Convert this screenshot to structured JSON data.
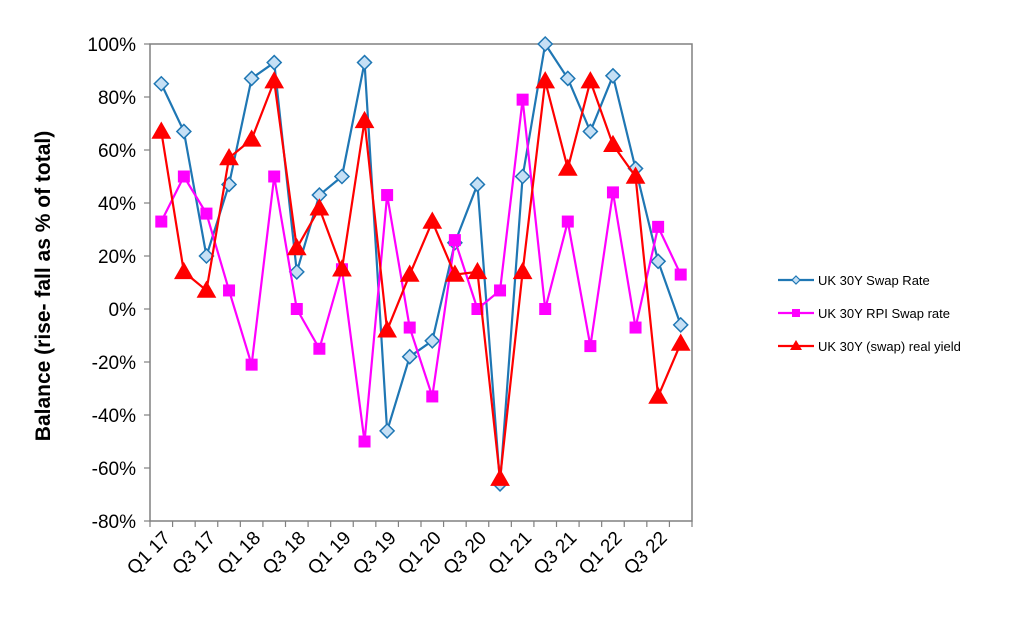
{
  "chart_data": {
    "type": "line",
    "title": "",
    "xlabel": "",
    "ylabel": "Balance (rise- fall as % of total)",
    "ylim": [
      -80,
      100
    ],
    "ytick_step": 20,
    "ytick_suffix": "%",
    "grid": false,
    "legend_position": "right",
    "categories": [
      "Q1 17",
      "Q2 17",
      "Q3 17",
      "Q4 17",
      "Q1 18",
      "Q2 18",
      "Q3 18",
      "Q4 18",
      "Q1 19",
      "Q2 19",
      "Q3 19",
      "Q4 19",
      "Q1 20",
      "Q2 20",
      "Q3 20",
      "Q4 20",
      "Q1 21",
      "Q2 21",
      "Q3 21",
      "Q4 21",
      "Q1 22",
      "Q2 22",
      "Q3 22",
      "Q4 22"
    ],
    "tick_labels": [
      "Q1 17",
      "Q3 17",
      "Q1 18",
      "Q3 18",
      "Q1 19",
      "Q3 19",
      "Q1 20",
      "Q3 20",
      "Q1 21",
      "Q3 21",
      "Q1 22",
      "Q3 22"
    ],
    "series": [
      {
        "name": "UK 30Y Swap Rate",
        "color": "#1F77B4",
        "marker": "diamond",
        "marker_fill": "#C6E0F5",
        "values": [
          85,
          67,
          20,
          47,
          87,
          93,
          14,
          43,
          50,
          93,
          -46,
          -18,
          -12,
          25,
          47,
          -66,
          50,
          100,
          87,
          67,
          88,
          53,
          18,
          -6
        ]
      },
      {
        "name": "UK 30Y RPI Swap rate",
        "color": "#FF00FF",
        "marker": "square",
        "marker_fill": "#FF00FF",
        "values": [
          33,
          50,
          36,
          7,
          -21,
          50,
          0,
          -15,
          15,
          -50,
          43,
          -7,
          -33,
          26,
          0,
          7,
          79,
          0,
          33,
          -14,
          44,
          -7,
          31,
          13
        ]
      },
      {
        "name": "UK 30Y (swap) real yield",
        "color": "#FF0000",
        "marker": "triangle",
        "marker_fill": "#FF0000",
        "values": [
          67,
          14,
          7,
          57,
          64,
          86,
          23,
          38,
          15,
          71,
          -8,
          13,
          33,
          13,
          14,
          -64,
          14,
          86,
          53,
          86,
          62,
          50,
          -33,
          -13
        ]
      }
    ]
  }
}
